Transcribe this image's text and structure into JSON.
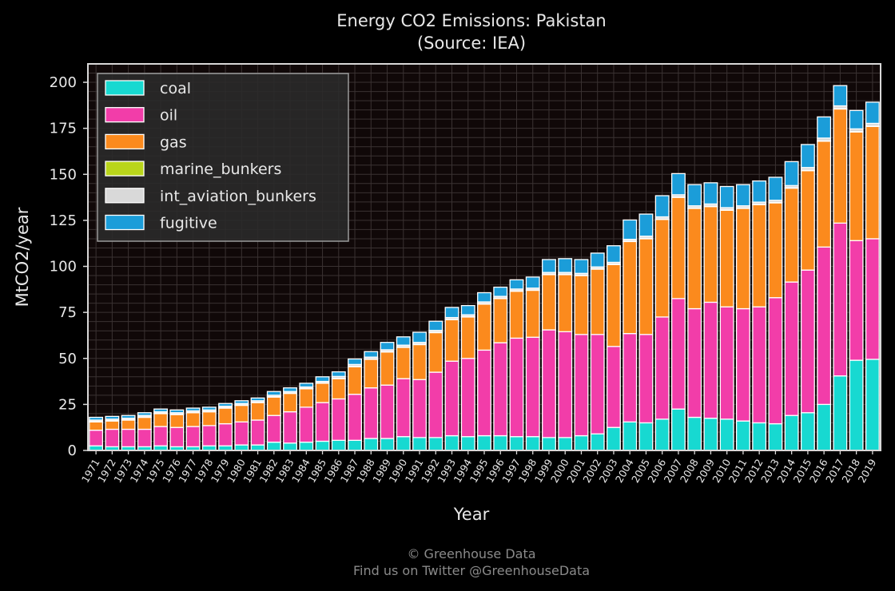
{
  "chart_data": {
    "type": "bar",
    "stacked": true,
    "title": "Energy CO2 Emissions: Pakistan",
    "subtitle": "(Source: IEA)",
    "xlabel": "Year",
    "ylabel": "MtCO2/year",
    "ylim": [
      0,
      210
    ],
    "yticks": [
      0,
      25,
      50,
      75,
      100,
      125,
      150,
      175,
      200
    ],
    "grid": true,
    "legend_position": "top-left",
    "categories": [
      "1971",
      "1972",
      "1973",
      "1974",
      "1975",
      "1976",
      "1977",
      "1978",
      "1979",
      "1980",
      "1981",
      "1982",
      "1983",
      "1984",
      "1985",
      "1986",
      "1987",
      "1988",
      "1989",
      "1990",
      "1991",
      "1992",
      "1993",
      "1994",
      "1995",
      "1996",
      "1997",
      "1998",
      "1999",
      "2000",
      "2001",
      "2002",
      "2003",
      "2004",
      "2005",
      "2006",
      "2007",
      "2008",
      "2009",
      "2010",
      "2011",
      "2012",
      "2013",
      "2014",
      "2015",
      "2016",
      "2017",
      "2018",
      "2019"
    ],
    "series": [
      {
        "name": "coal",
        "color": "#17d9d1",
        "values": [
          2.5,
          2,
          2,
          2,
          2.5,
          2,
          2,
          2.5,
          2.5,
          3,
          3,
          4.5,
          4,
          4.5,
          5,
          5.5,
          5.5,
          6.5,
          6.5,
          7.5,
          7,
          7,
          8,
          7.5,
          8,
          8,
          7.5,
          7.5,
          7,
          7,
          8,
          9,
          12.5,
          15.5,
          15,
          17,
          22.5,
          18,
          17.5,
          17,
          16,
          15,
          14.5,
          19,
          20.5,
          25,
          40.5,
          49,
          49.5
        ]
      },
      {
        "name": "oil",
        "color": "#f23da9",
        "values": [
          8.5,
          9.5,
          9.5,
          9.5,
          10.5,
          10.5,
          11,
          11,
          12,
          12.5,
          13.5,
          14.5,
          17,
          19,
          21,
          22.5,
          25,
          27.5,
          29,
          31.5,
          31.5,
          35.5,
          40.5,
          42.5,
          46.5,
          50.5,
          53.5,
          54,
          58.5,
          57.5,
          55,
          54,
          44,
          48,
          48,
          55.5,
          60,
          59,
          63,
          61,
          61,
          63,
          68.5,
          72.5,
          77.5,
          85.5,
          83,
          65,
          65.5
        ]
      },
      {
        "name": "gas",
        "color": "#fb8a1d",
        "values": [
          4.5,
          4.5,
          5,
          6.5,
          7,
          7,
          7.5,
          7.5,
          8.5,
          9,
          9.5,
          10,
          10,
          10,
          10.5,
          11,
          15,
          15.5,
          18,
          17,
          19,
          21.5,
          22.5,
          22.5,
          25,
          24,
          25.5,
          25.5,
          30,
          31,
          32,
          35.5,
          44.5,
          50,
          52,
          53,
          55,
          54.5,
          52,
          52.5,
          54.5,
          55.5,
          51.5,
          51,
          54,
          57.5,
          62,
          59,
          61
        ]
      },
      {
        "name": "marine_bunkers",
        "color": "#b9d51a",
        "values": [
          0.2,
          0.2,
          0.2,
          0.2,
          0.2,
          0.2,
          0.2,
          0.2,
          0.2,
          0.2,
          0.2,
          0.2,
          0.2,
          0.2,
          0.2,
          0.2,
          0.2,
          0.2,
          0.2,
          0.2,
          0.2,
          0.2,
          0.2,
          0.2,
          0.2,
          0.2,
          0.2,
          0.2,
          0.2,
          0.2,
          0.2,
          0.2,
          0.2,
          0.2,
          0.2,
          0.2,
          0.2,
          0.2,
          0.2,
          0.2,
          0.2,
          0.2,
          0.2,
          0.2,
          0.2,
          0.2,
          0.2,
          0.2,
          0.2
        ]
      },
      {
        "name": "int_aviation_bunkers",
        "color": "#d9d9d9",
        "values": [
          0.8,
          0.8,
          0.8,
          0.8,
          0.8,
          0.8,
          0.8,
          0.8,
          0.8,
          0.8,
          0.8,
          0.8,
          0.8,
          0.8,
          0.8,
          1,
          1,
          1,
          1,
          1,
          1,
          1,
          1,
          1,
          1,
          1,
          1,
          1,
          1,
          1,
          1,
          1,
          1,
          1,
          1.2,
          1.2,
          1.2,
          1.2,
          1.2,
          1.2,
          1.2,
          1.2,
          1.2,
          1.2,
          1.5,
          1.5,
          1.5,
          1.5,
          1.5
        ]
      },
      {
        "name": "fugitive",
        "color": "#1b9dd9",
        "values": [
          1.5,
          1.5,
          1.5,
          1.5,
          1.5,
          1.5,
          1.5,
          1.5,
          1.5,
          1.5,
          1.5,
          2,
          2,
          2,
          2.5,
          2.5,
          3,
          3,
          4,
          4.5,
          5.5,
          5,
          5.5,
          5,
          5,
          5,
          5,
          6,
          7,
          7.5,
          7.5,
          7.5,
          9,
          10.5,
          12,
          11.5,
          11.5,
          11.5,
          11.5,
          11.5,
          11.5,
          11.5,
          12.5,
          13,
          12.5,
          11.5,
          11,
          10,
          11.5
        ]
      }
    ]
  },
  "footer": {
    "line1": "© Greenhouse Data",
    "line2": "Find us on Twitter @GreenhouseData"
  }
}
